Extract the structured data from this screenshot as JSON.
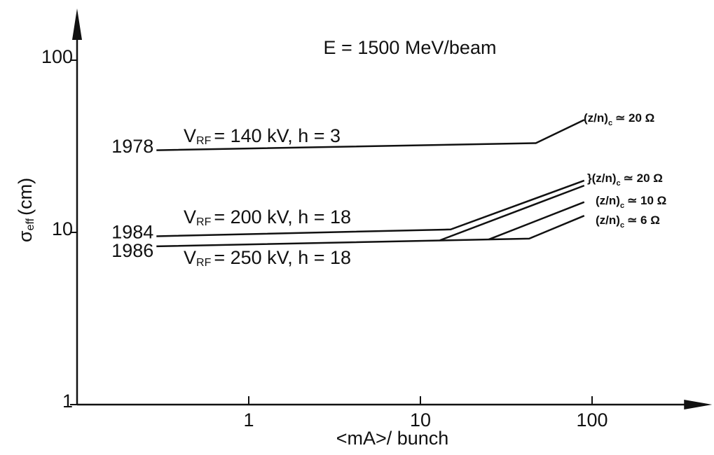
{
  "chart_data": {
    "type": "line",
    "title": "E = 1500 MeV/beam",
    "xlabel": "<mA>/ bunch",
    "ylabel": {
      "main": "σ",
      "sub": "eff",
      "rest": "(cm)"
    },
    "xscale": "log",
    "yscale": "log",
    "xlim": [
      0.1,
      500
    ],
    "ylim": [
      1,
      200
    ],
    "xticks": [
      1,
      10,
      100
    ],
    "yticks": [
      1,
      10,
      100
    ],
    "color": "#111111",
    "series": [
      {
        "name": "1978",
        "x": [
          0.29,
          47,
          90
        ],
        "y": [
          30,
          33,
          45
        ]
      },
      {
        "name": "1984",
        "x": [
          0.29,
          15,
          90
        ],
        "y": [
          9.5,
          10.4,
          20
        ]
      },
      {
        "name": "1986",
        "x": [
          0.29,
          43,
          90
        ],
        "y": [
          8.3,
          9.2,
          12.5
        ]
      },
      {
        "x": [
          13,
          90
        ],
        "y": [
          9.0,
          18.7
        ]
      },
      {
        "x": [
          25,
          90
        ],
        "y": [
          9.1,
          15
        ]
      }
    ],
    "annotations": [
      {
        "main": "V",
        "sub": "RF",
        "rest": "= 140 kV,  h = 3"
      },
      {
        "main": "V",
        "sub": "RF",
        "rest": "= 200 kV,  h = 18"
      },
      {
        "main": "V",
        "sub": "RF",
        "rest": "= 250 kV,  h = 18"
      },
      {
        "main": "(z/n)",
        "sub": "c",
        "rest": "≃ 20 Ω"
      },
      {
        "main": "}(z/n)",
        "sub": "c",
        "rest": "≃ 20 Ω"
      },
      {
        "main": "(z/n)",
        "sub": "c",
        "rest": "≃ 10 Ω"
      },
      {
        "main": "(z/n)",
        "sub": "c",
        "rest": "≃ 6 Ω"
      }
    ]
  }
}
